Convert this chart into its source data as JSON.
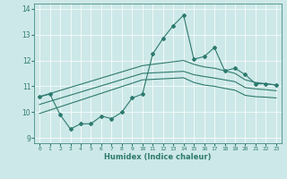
{
  "xlabel": "Humidex (Indice chaleur)",
  "x_values": [
    0,
    1,
    2,
    3,
    4,
    5,
    6,
    7,
    8,
    9,
    10,
    11,
    12,
    13,
    14,
    15,
    16,
    17,
    18,
    19,
    20,
    21,
    22,
    23
  ],
  "line_main": [
    10.6,
    10.7,
    9.9,
    9.35,
    9.55,
    9.55,
    9.85,
    9.75,
    10.0,
    10.55,
    10.7,
    12.25,
    12.85,
    13.35,
    13.75,
    12.05,
    12.15,
    12.5,
    11.6,
    11.7,
    11.45,
    11.1,
    11.1,
    11.05
  ],
  "line_upper": [
    10.6,
    10.72,
    10.84,
    10.96,
    11.08,
    11.2,
    11.32,
    11.44,
    11.56,
    11.68,
    11.8,
    11.85,
    11.9,
    11.95,
    12.0,
    11.85,
    11.75,
    11.7,
    11.6,
    11.5,
    11.25,
    11.15,
    11.1,
    11.05
  ],
  "line_mid": [
    10.3,
    10.42,
    10.54,
    10.66,
    10.78,
    10.9,
    11.02,
    11.14,
    11.26,
    11.38,
    11.5,
    11.52,
    11.54,
    11.56,
    11.58,
    11.45,
    11.38,
    11.32,
    11.25,
    11.18,
    10.95,
    10.9,
    10.87,
    10.83
  ],
  "line_lower": [
    9.95,
    10.08,
    10.21,
    10.34,
    10.47,
    10.6,
    10.73,
    10.86,
    10.99,
    11.12,
    11.25,
    11.27,
    11.29,
    11.31,
    11.33,
    11.15,
    11.05,
    11.0,
    10.92,
    10.85,
    10.65,
    10.6,
    10.58,
    10.55
  ],
  "bg_color": "#cde8e8",
  "grid_color": "#ffffff",
  "line_color": "#2d7a6e",
  "xlim": [
    -0.5,
    23.5
  ],
  "ylim": [
    8.8,
    14.2
  ],
  "yticks": [
    9,
    10,
    11,
    12,
    13,
    14
  ],
  "xticks": [
    0,
    1,
    2,
    3,
    4,
    5,
    6,
    7,
    8,
    9,
    10,
    11,
    12,
    13,
    14,
    15,
    16,
    17,
    18,
    19,
    20,
    21,
    22,
    23
  ]
}
